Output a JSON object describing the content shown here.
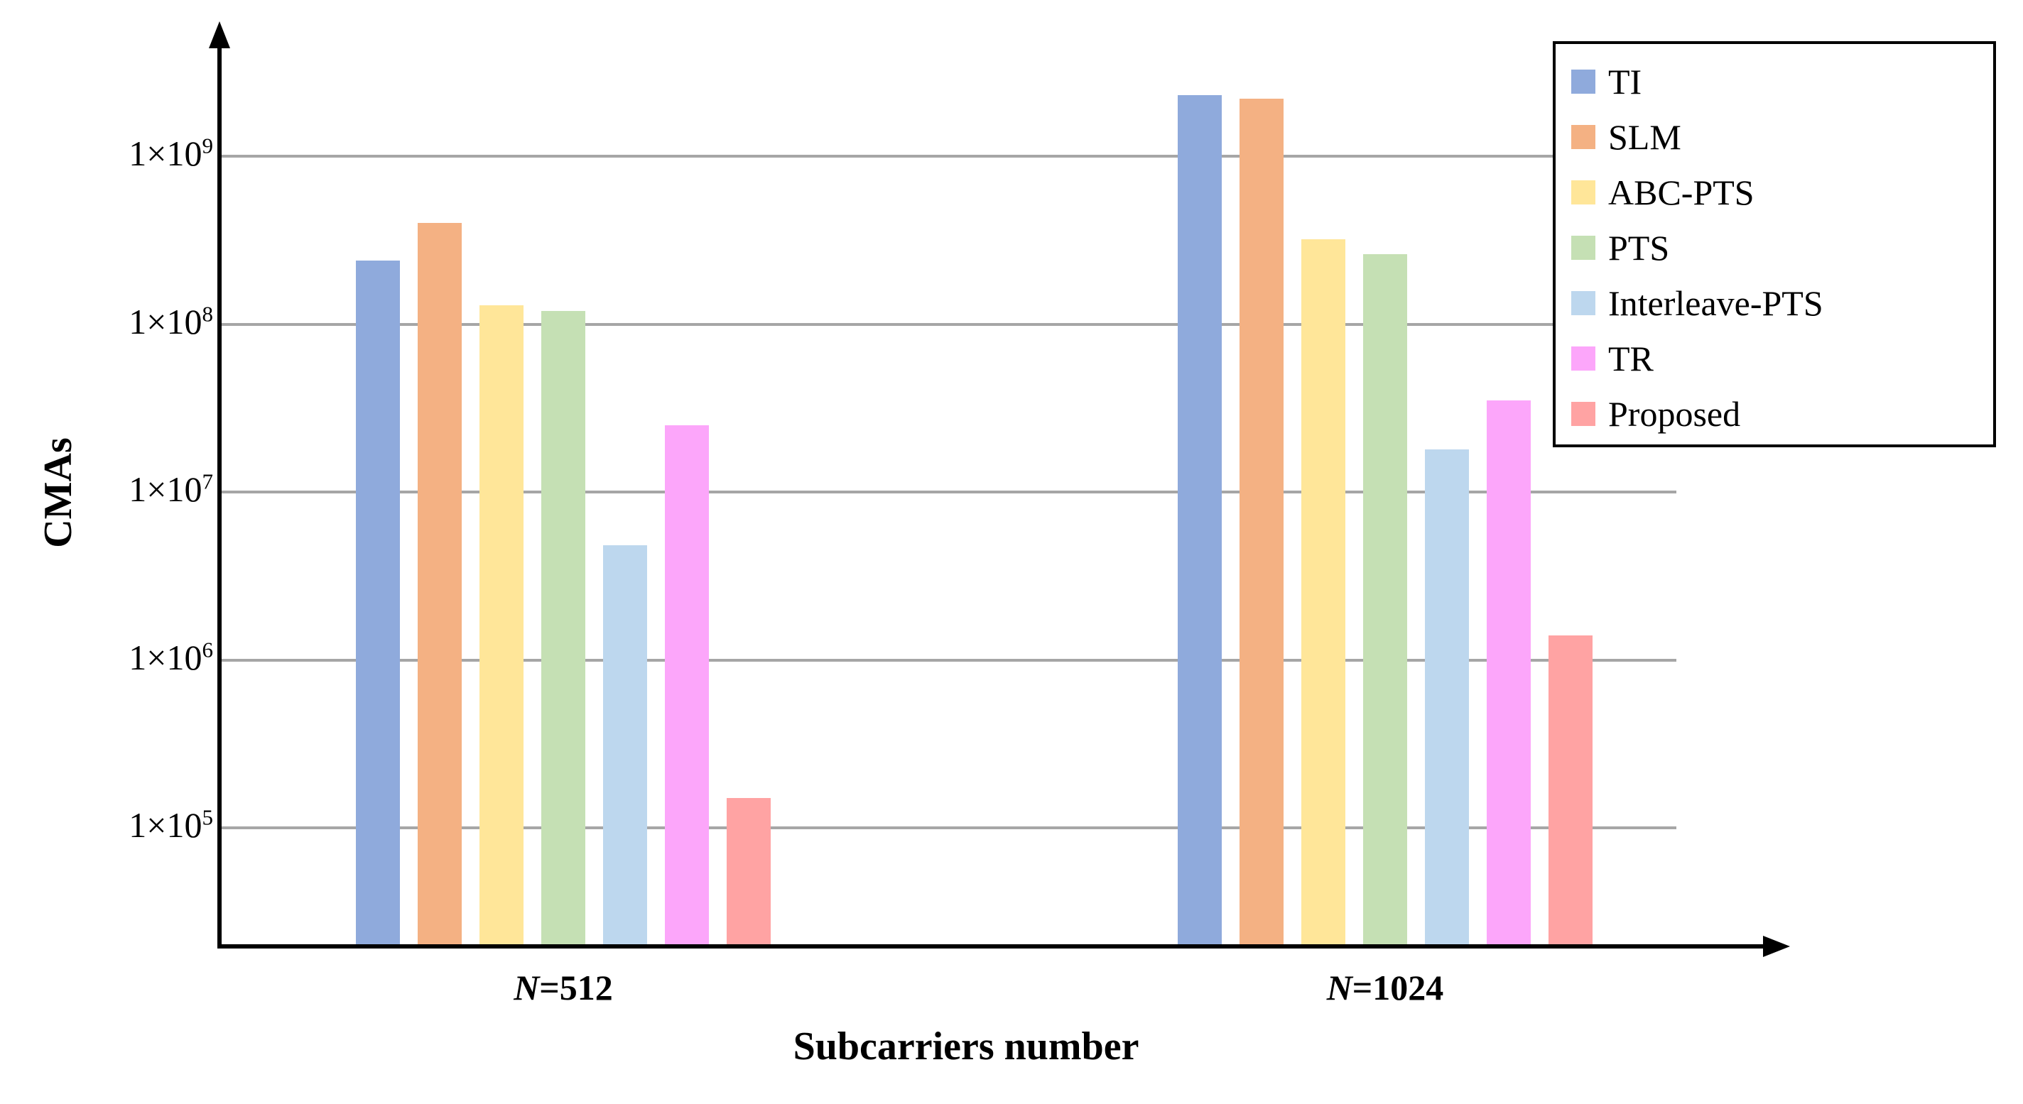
{
  "chart_data": {
    "type": "bar",
    "title": "",
    "xlabel": "Subcarriers number",
    "ylabel": "CMAs",
    "yscale": "log",
    "ylim": [
      20000,
      3000000000
    ],
    "grid": true,
    "legend_position": "top-right",
    "ytick_base": "1×10",
    "ytick_exponents": [
      9,
      8,
      7,
      6,
      5
    ],
    "categories": [
      {
        "symbol": "N",
        "suffix": "=512"
      },
      {
        "symbol": "N",
        "suffix": "=1024"
      }
    ],
    "series": [
      {
        "name": "TI",
        "color": "#8FAADC",
        "values": [
          240000000,
          2300000000
        ]
      },
      {
        "name": "SLM",
        "color": "#F4B183",
        "values": [
          400000000,
          2200000000
        ]
      },
      {
        "name": "ABC-PTS",
        "color": "#FFE699",
        "values": [
          130000000,
          320000000
        ]
      },
      {
        "name": "PTS",
        "color": "#C5E0B4",
        "values": [
          120000000,
          260000000
        ]
      },
      {
        "name": "Interleave-PTS",
        "color": "#BDD7EE",
        "values": [
          4800000,
          18000000
        ]
      },
      {
        "name": "TR",
        "color": "#FCA6FA",
        "values": [
          25000000,
          35000000
        ]
      },
      {
        "name": "Proposed",
        "color": "#FFA3A3",
        "values": [
          150000,
          1400000
        ]
      }
    ],
    "colors": {
      "axis": "#000000",
      "gridline": "#A6A6A6",
      "text": "#000000",
      "background": "#FFFFFF"
    }
  }
}
